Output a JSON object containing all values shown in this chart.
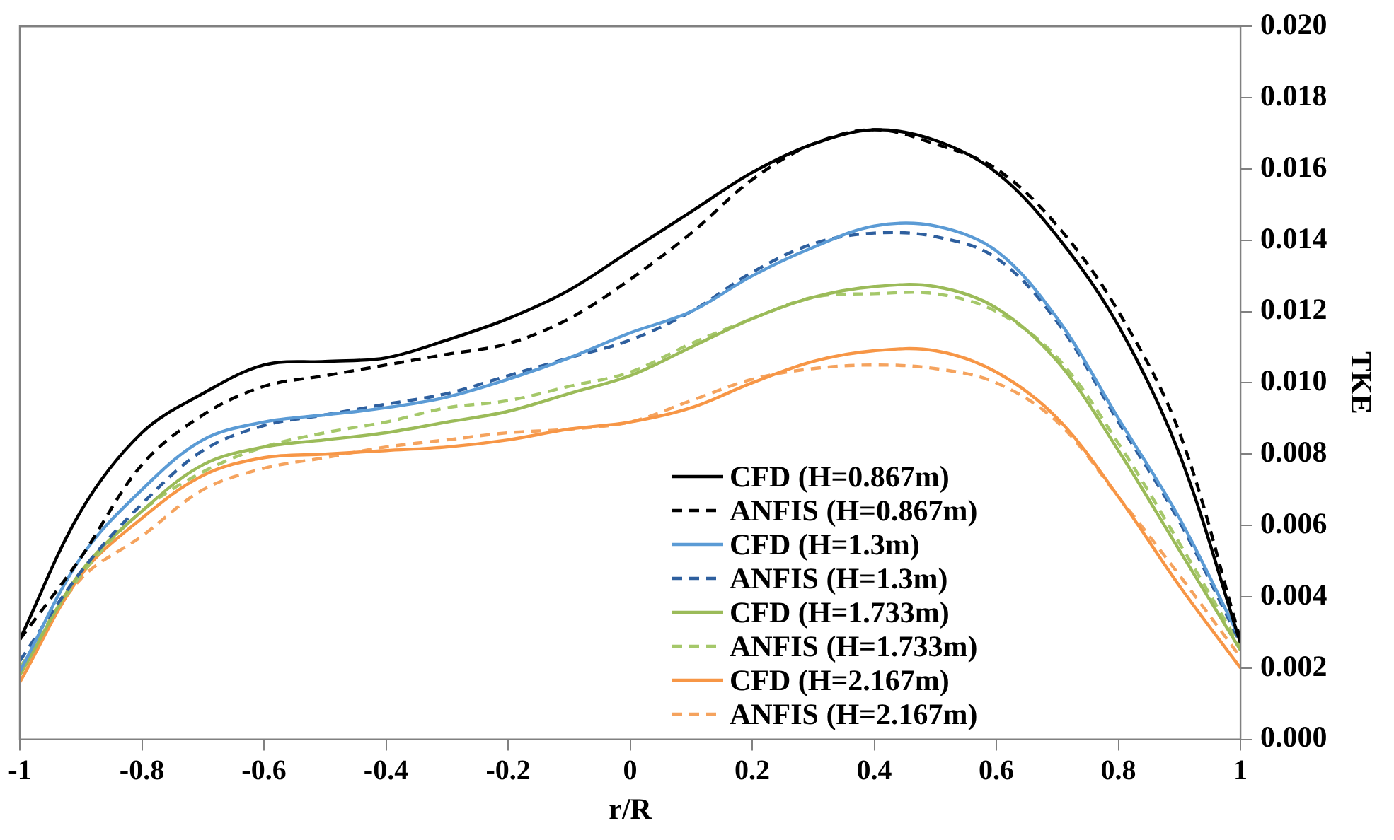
{
  "chart_data": {
    "type": "line",
    "xlabel": "r/R",
    "ylabel": "TKE",
    "x": [
      -1,
      -0.9,
      -0.8,
      -0.7,
      -0.6,
      -0.5,
      -0.4,
      -0.3,
      -0.2,
      -0.1,
      0,
      0.1,
      0.2,
      0.3,
      0.4,
      0.5,
      0.6,
      0.7,
      0.8,
      0.9,
      1
    ],
    "series": [
      {
        "name": "CFD (H=0.867m)",
        "color": "#000000",
        "line_style": "solid",
        "values": [
          0.0028,
          0.0064,
          0.0086,
          0.0097,
          0.0105,
          0.0106,
          0.0107,
          0.0112,
          0.0118,
          0.0126,
          0.0137,
          0.0148,
          0.0159,
          0.0167,
          0.0171,
          0.0168,
          0.0159,
          0.0141,
          0.0116,
          0.008,
          0.0027
        ]
      },
      {
        "name": "ANFIS (H=0.867m)",
        "color": "#000000",
        "line_style": "dashed",
        "values": [
          0.0028,
          0.0051,
          0.0077,
          0.0091,
          0.0099,
          0.0102,
          0.0105,
          0.0108,
          0.0111,
          0.0118,
          0.0129,
          0.0142,
          0.0157,
          0.0167,
          0.0171,
          0.0167,
          0.016,
          0.0144,
          0.012,
          0.0086,
          0.0028
        ]
      },
      {
        "name": "CFD (H=1.3m)",
        "color": "#5b9bd5",
        "line_style": "solid",
        "values": [
          0.0019,
          0.0051,
          0.007,
          0.0084,
          0.0089,
          0.0091,
          0.0093,
          0.0096,
          0.0101,
          0.0107,
          0.0114,
          0.012,
          0.013,
          0.0138,
          0.0144,
          0.0144,
          0.0137,
          0.0118,
          0.009,
          0.0062,
          0.0028
        ]
      },
      {
        "name": "ANFIS (H=1.3m)",
        "color": "#2e5f9e",
        "line_style": "dashed",
        "values": [
          0.0022,
          0.0047,
          0.0066,
          0.0081,
          0.0088,
          0.0091,
          0.0094,
          0.0097,
          0.0102,
          0.0107,
          0.0112,
          0.012,
          0.0131,
          0.0139,
          0.0142,
          0.0141,
          0.0135,
          0.0117,
          0.0089,
          0.0061,
          0.0027
        ]
      },
      {
        "name": "CFD (H=1.733m)",
        "color": "#9bbb59",
        "line_style": "solid",
        "values": [
          0.0018,
          0.0047,
          0.0064,
          0.0077,
          0.0082,
          0.0084,
          0.0086,
          0.0089,
          0.0092,
          0.0097,
          0.0102,
          0.011,
          0.0118,
          0.0124,
          0.0127,
          0.0127,
          0.0121,
          0.0106,
          0.0081,
          0.0053,
          0.0025
        ]
      },
      {
        "name": "ANFIS (H=1.733m)",
        "color": "#a5c86a",
        "line_style": "dashed",
        "values": [
          0.002,
          0.0046,
          0.0064,
          0.0075,
          0.0082,
          0.0086,
          0.0089,
          0.0093,
          0.0095,
          0.0099,
          0.0103,
          0.0111,
          0.0118,
          0.0124,
          0.0125,
          0.0125,
          0.012,
          0.0107,
          0.0083,
          0.0055,
          0.0026
        ]
      },
      {
        "name": "CFD (H=2.167m)",
        "color": "#f79646",
        "line_style": "solid",
        "values": [
          0.0016,
          0.0046,
          0.0062,
          0.0074,
          0.0079,
          0.008,
          0.0081,
          0.0082,
          0.0084,
          0.0087,
          0.0089,
          0.0093,
          0.01,
          0.0106,
          0.0109,
          0.0109,
          0.0103,
          0.009,
          0.0068,
          0.0043,
          0.002
        ]
      },
      {
        "name": "ANFIS (H=2.167m)",
        "color": "#f5a35e",
        "line_style": "dashed",
        "values": [
          0.002,
          0.0045,
          0.0057,
          0.007,
          0.0076,
          0.0079,
          0.0082,
          0.0084,
          0.0086,
          0.0087,
          0.0089,
          0.0095,
          0.0101,
          0.0104,
          0.0105,
          0.0104,
          0.01,
          0.0089,
          0.0068,
          0.0046,
          0.0023
        ]
      }
    ],
    "xlim": [
      -1,
      1
    ],
    "xticks": [
      -1,
      -0.8,
      -0.6,
      -0.4,
      -0.2,
      0,
      0.2,
      0.4,
      0.6,
      0.8,
      1
    ],
    "ylim": [
      0,
      0.02
    ],
    "yticks": [
      {
        "value": 0,
        "label": "0.000"
      },
      {
        "value": 0.002,
        "label": "0.002"
      },
      {
        "value": 0.004,
        "label": "0.004"
      },
      {
        "value": 0.006,
        "label": "0.006"
      },
      {
        "value": 0.008,
        "label": "0.008"
      },
      {
        "value": 0.01,
        "label": "0.010"
      },
      {
        "value": 0.012,
        "label": "0.012"
      },
      {
        "value": 0.014,
        "label": "0.014"
      },
      {
        "value": 0.016,
        "label": "0.016"
      },
      {
        "value": 0.018,
        "label": "0.018"
      },
      {
        "value": 0.02,
        "label": "0.020"
      }
    ],
    "grid": false,
    "legend": "bottom",
    "marker": "none"
  }
}
